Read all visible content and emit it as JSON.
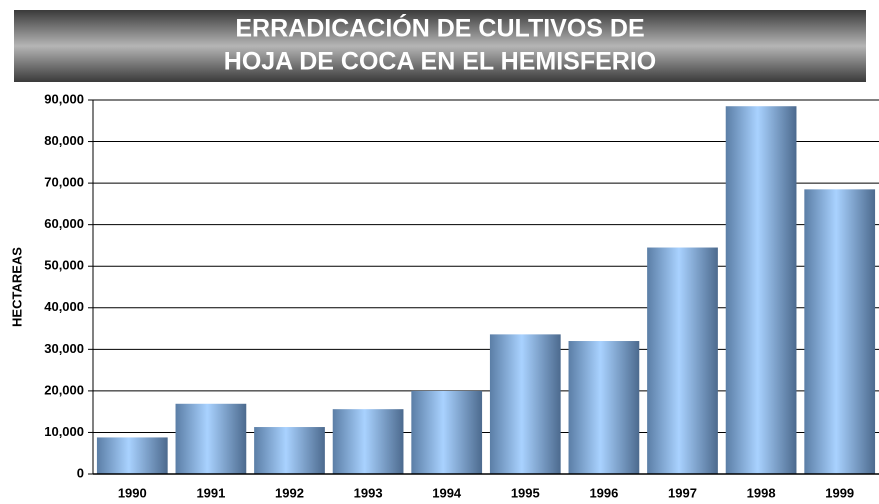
{
  "chart_data": {
    "type": "bar",
    "title": [
      "ERRADICACIÓN DE CULTIVOS DE",
      "HOJA DE COCA EN EL HEMISFERIO"
    ],
    "y_label": "HECTAREAS",
    "categories": [
      "1990",
      "1991",
      "1992",
      "1993",
      "1994",
      "1995",
      "1996",
      "1997",
      "1998",
      "1999"
    ],
    "values": [
      8800,
      16900,
      11300,
      15600,
      20000,
      33600,
      32000,
      54500,
      88500,
      68500
    ],
    "color": "#8ab8ec",
    "ylim": [
      0,
      90000
    ],
    "yticks": [
      0,
      {
        "value": 10000,
        "label": "10,000"
      },
      {
        "value": 20000,
        "label": "20,000"
      },
      {
        "value": 30000,
        "label": "30,000"
      },
      {
        "value": 40000,
        "label": "40,000"
      },
      {
        "value": 50000,
        "label": "50,000"
      },
      {
        "value": 60000,
        "label": "60,000"
      },
      {
        "value": 70000,
        "label": "70,000"
      },
      {
        "value": 80000,
        "label": "80,000"
      },
      {
        "value": 90000,
        "label": "90,000"
      }
    ],
    "grid": true
  }
}
